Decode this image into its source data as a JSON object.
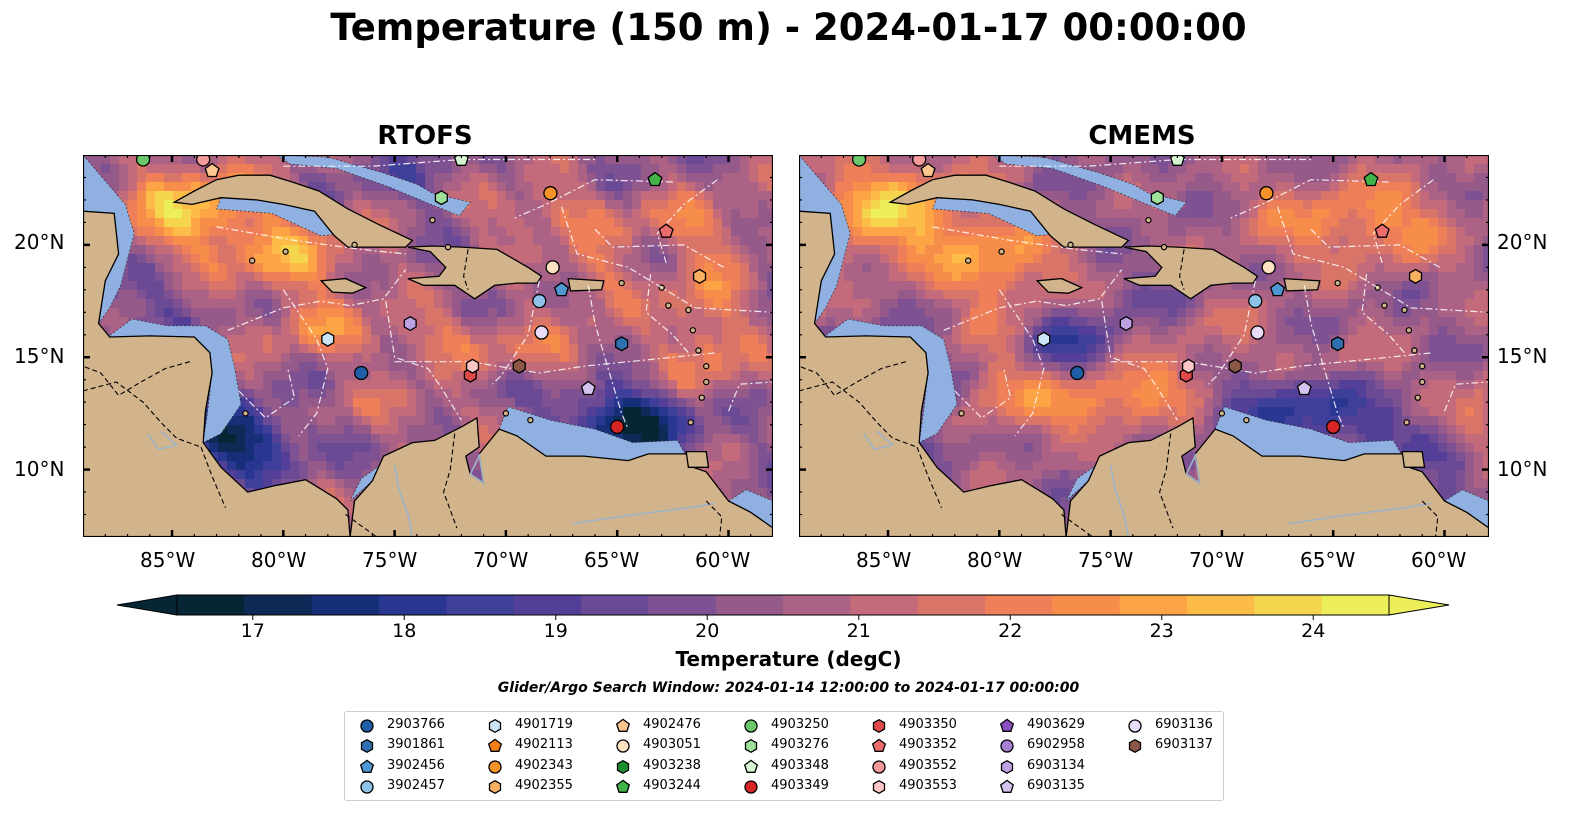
{
  "title": "Temperature (150 m) - 2024-01-17 00:00:00",
  "panels": [
    {
      "title": "RTOFS"
    },
    {
      "title": "CMEMS"
    }
  ],
  "axes": {
    "lon_ticks": [
      "85°W",
      "80°W",
      "75°W",
      "70°W",
      "65°W",
      "60°W"
    ],
    "lat_ticks": [
      "20°N",
      "15°N",
      "10°N"
    ]
  },
  "colorbar": {
    "label": "Temperature (degC)",
    "ticks": [
      "17",
      "18",
      "19",
      "20",
      "21",
      "22",
      "23",
      "24"
    ],
    "min": 16.5,
    "max": 24.5,
    "colors": [
      "#062636",
      "#0f2a57",
      "#172e78",
      "#2a3791",
      "#3d3f98",
      "#533f98",
      "#6a4a95",
      "#7e5292",
      "#955a8a",
      "#ab6284",
      "#c36b7a",
      "#d87468",
      "#ee7f58",
      "#f78d4a",
      "#fda446",
      "#fdbc47",
      "#f6d54e",
      "#ecef5a"
    ]
  },
  "search_window": "Glider/Argo Search Window: 2024-01-14 12:00:00 to 2024-01-17 00:00:00",
  "colors": {
    "land": "#d2b48c",
    "shelf_water": "#8fb0e0",
    "deep_outside": "#06222f"
  },
  "legend": [
    {
      "id": "2903766",
      "marker": "circle",
      "color": "#1f5fa8"
    },
    {
      "id": "3901861",
      "marker": "hexagon",
      "color": "#2f70b0"
    },
    {
      "id": "3902456",
      "marker": "pentagon",
      "color": "#4f98d2"
    },
    {
      "id": "3902457",
      "marker": "circle",
      "color": "#8fc3ea"
    },
    {
      "id": "4901719",
      "marker": "hexagon",
      "color": "#cce4f7"
    },
    {
      "id": "4902113",
      "marker": "pentagon",
      "color": "#f07f15"
    },
    {
      "id": "4902343",
      "marker": "circle",
      "color": "#f5922a"
    },
    {
      "id": "4902355",
      "marker": "hexagon",
      "color": "#f9b060"
    },
    {
      "id": "4902476",
      "marker": "pentagon",
      "color": "#fbc78e"
    },
    {
      "id": "4903051",
      "marker": "circle",
      "color": "#fde2c2"
    },
    {
      "id": "4903238",
      "marker": "hexagon",
      "color": "#1e8f2e"
    },
    {
      "id": "4903244",
      "marker": "pentagon",
      "color": "#41b348"
    },
    {
      "id": "4903250",
      "marker": "circle",
      "color": "#6ac86a"
    },
    {
      "id": "4903276",
      "marker": "hexagon",
      "color": "#9fe09a"
    },
    {
      "id": "4903348",
      "marker": "pentagon",
      "color": "#d4f5cf"
    },
    {
      "id": "4903349",
      "marker": "circle",
      "color": "#d62526"
    },
    {
      "id": "4903350",
      "marker": "hexagon",
      "color": "#e04a4a"
    },
    {
      "id": "4903352",
      "marker": "pentagon",
      "color": "#ec6c6c"
    },
    {
      "id": "4903552",
      "marker": "circle",
      "color": "#f59a9a"
    },
    {
      "id": "4903553",
      "marker": "hexagon",
      "color": "#fcc6c6"
    },
    {
      "id": "4903629",
      "marker": "pentagon",
      "color": "#8a4fc0"
    },
    {
      "id": "6902958",
      "marker": "circle",
      "color": "#a77fd5"
    },
    {
      "id": "6903134",
      "marker": "hexagon",
      "color": "#bca2e2"
    },
    {
      "id": "6903135",
      "marker": "pentagon",
      "color": "#d5c3ef"
    },
    {
      "id": "6903136",
      "marker": "circle",
      "color": "#e9dcf8"
    },
    {
      "id": "6903137",
      "marker": "hexagon",
      "color": "#8b5747"
    }
  ],
  "floats": [
    {
      "id": "2903766",
      "lon": -76.5,
      "lat": 14.3
    },
    {
      "id": "3902457",
      "lon": -68.5,
      "lat": 17.5
    },
    {
      "id": "4901719",
      "lon": -78.0,
      "lat": 15.8
    },
    {
      "id": "3901861",
      "lon": -64.8,
      "lat": 15.6
    },
    {
      "id": "3902456",
      "lon": -67.5,
      "lat": 18.0
    },
    {
      "id": "4902343",
      "lon": -68.0,
      "lat": 22.3
    },
    {
      "id": "4902355",
      "lon": -61.3,
      "lat": 18.6
    },
    {
      "id": "4902476",
      "lon": -83.2,
      "lat": 23.3
    },
    {
      "id": "4903051",
      "lon": -67.9,
      "lat": 19.0
    },
    {
      "id": "4903244",
      "lon": -63.3,
      "lat": 22.9
    },
    {
      "id": "4903250",
      "lon": -86.3,
      "lat": 23.8
    },
    {
      "id": "4903276",
      "lon": -72.9,
      "lat": 22.1
    },
    {
      "id": "4903348",
      "lon": -72.0,
      "lat": 23.8
    },
    {
      "id": "4903349",
      "lon": -65.0,
      "lat": 11.9
    },
    {
      "id": "4903350",
      "lon": -71.6,
      "lat": 14.2
    },
    {
      "id": "4903352",
      "lon": -62.8,
      "lat": 20.6
    },
    {
      "id": "4903553",
      "lon": -71.5,
      "lat": 14.6
    },
    {
      "id": "4903552",
      "lon": -83.6,
      "lat": 23.8
    },
    {
      "id": "6903134",
      "lon": -74.3,
      "lat": 16.5
    },
    {
      "id": "6903135",
      "lon": -66.3,
      "lat": 13.6
    },
    {
      "id": "6903136",
      "lon": -68.4,
      "lat": 16.1
    },
    {
      "id": "6903137",
      "lon": -69.4,
      "lat": 14.6
    }
  ]
}
